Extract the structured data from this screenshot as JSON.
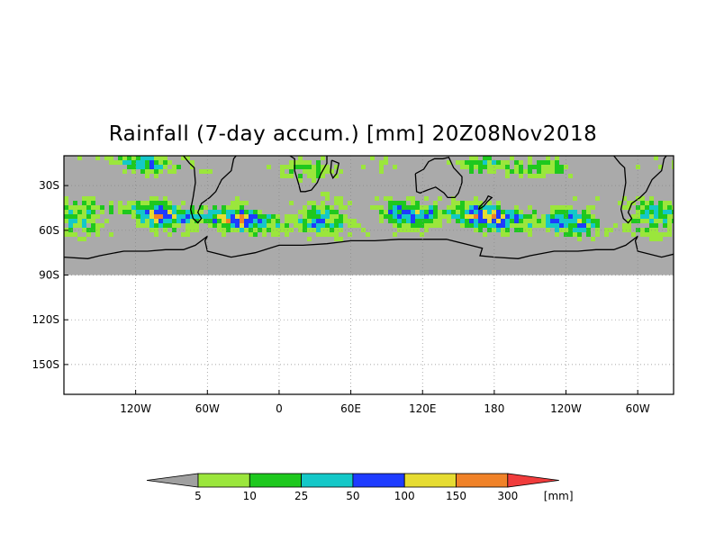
{
  "title": "Rainfall (7-day accum.) [mm] 20Z08Nov2018",
  "map": {
    "lat_labels": [
      {
        "lat": -30,
        "label": "30S"
      },
      {
        "lat": -60,
        "label": "60S"
      },
      {
        "lat": -90,
        "label": "90S"
      },
      {
        "lat": -120,
        "label": "120S"
      },
      {
        "lat": -150,
        "label": "150S"
      }
    ],
    "lon_labels": [
      {
        "lon": -120,
        "label": "120W"
      },
      {
        "lon": -60,
        "label": "60W"
      },
      {
        "lon": 0,
        "label": "0"
      },
      {
        "lon": 60,
        "label": "60E"
      },
      {
        "lon": 120,
        "label": "120E"
      },
      {
        "lon": 180,
        "label": "180"
      },
      {
        "lon": 240,
        "label": "120W"
      },
      {
        "lon": 300,
        "label": "60W"
      }
    ],
    "lon_range": [
      -180,
      330
    ],
    "lat_range": [
      -170,
      -10
    ],
    "data_lat_range": [
      -90,
      -10
    ],
    "background_color": "#aaaaaa"
  },
  "colorbar": {
    "unit_label": "[mm]",
    "labels": [
      "5",
      "10",
      "25",
      "50",
      "100",
      "150",
      "300"
    ],
    "colors": [
      "#a0a0a0",
      "#9be63c",
      "#1ec81e",
      "#14c8c8",
      "#1e3cff",
      "#e6dc32",
      "#f08228",
      "#f03c3c"
    ]
  }
}
